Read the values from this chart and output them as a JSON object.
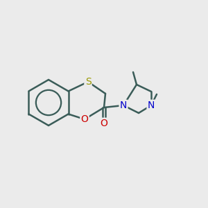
{
  "bg_color": "#ebebeb",
  "bond_color": "#3a5c58",
  "bond_width": 1.8,
  "atom_colors": {
    "S": "#999900",
    "O": "#cc0000",
    "N": "#0000cc",
    "C": "#3a5c58"
  },
  "font_size": 9,
  "fig_size": [
    3.0,
    3.0
  ],
  "dpi": 100
}
